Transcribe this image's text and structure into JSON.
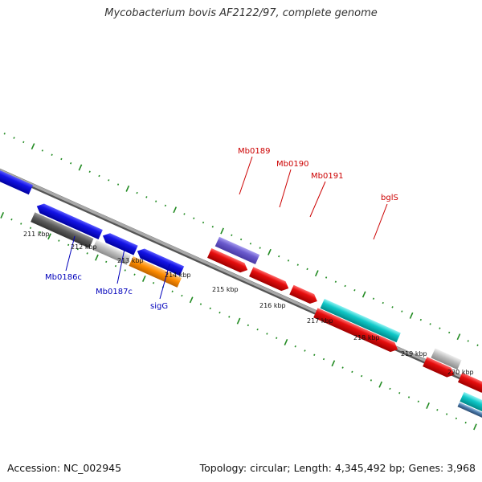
{
  "title": "Mycobacterium bovis AF2122/97, complete genome",
  "footer": {
    "accession": "Accession: NC_002945",
    "summary": "Topology: circular; Length: 4,345,492 bp; Genes: 3,968"
  },
  "colors": {
    "backbone": "#808080",
    "ticks": "#228B22",
    "gene_label_forward": "#CC0000",
    "gene_label_reverse": "#0000BB"
  },
  "scale_labels": [
    "211 kbp",
    "212 kbp",
    "213 kbp",
    "214 kbp",
    "215 kbp",
    "216 kbp",
    "217 kbp",
    "218 kbp",
    "219 kbp",
    "220 kbp"
  ],
  "gene_labels": [
    {
      "name": "Mb0189",
      "strand": "forward",
      "icon": "leader-line"
    },
    {
      "name": "Mb0190",
      "strand": "forward",
      "icon": "leader-line"
    },
    {
      "name": "Mb0191",
      "strand": "forward",
      "icon": "leader-line"
    },
    {
      "name": "bglS",
      "strand": "forward",
      "icon": "leader-line"
    },
    {
      "name": "Mb0186c",
      "strand": "reverse",
      "icon": "leader-line"
    },
    {
      "name": "Mb0187c",
      "strand": "reverse",
      "icon": "leader-line"
    },
    {
      "name": "sigG",
      "strand": "reverse",
      "icon": "leader-line"
    }
  ],
  "feature_colors": {
    "blue": "#1414E6",
    "red": "#E60E0E",
    "purple": "#6A5ACD",
    "cyan": "#10C8C8",
    "gray": "#BBBBBB",
    "darkgray": "#5A5A5A",
    "orange": "#FF8C00",
    "steel": "#4A7AAA"
  }
}
